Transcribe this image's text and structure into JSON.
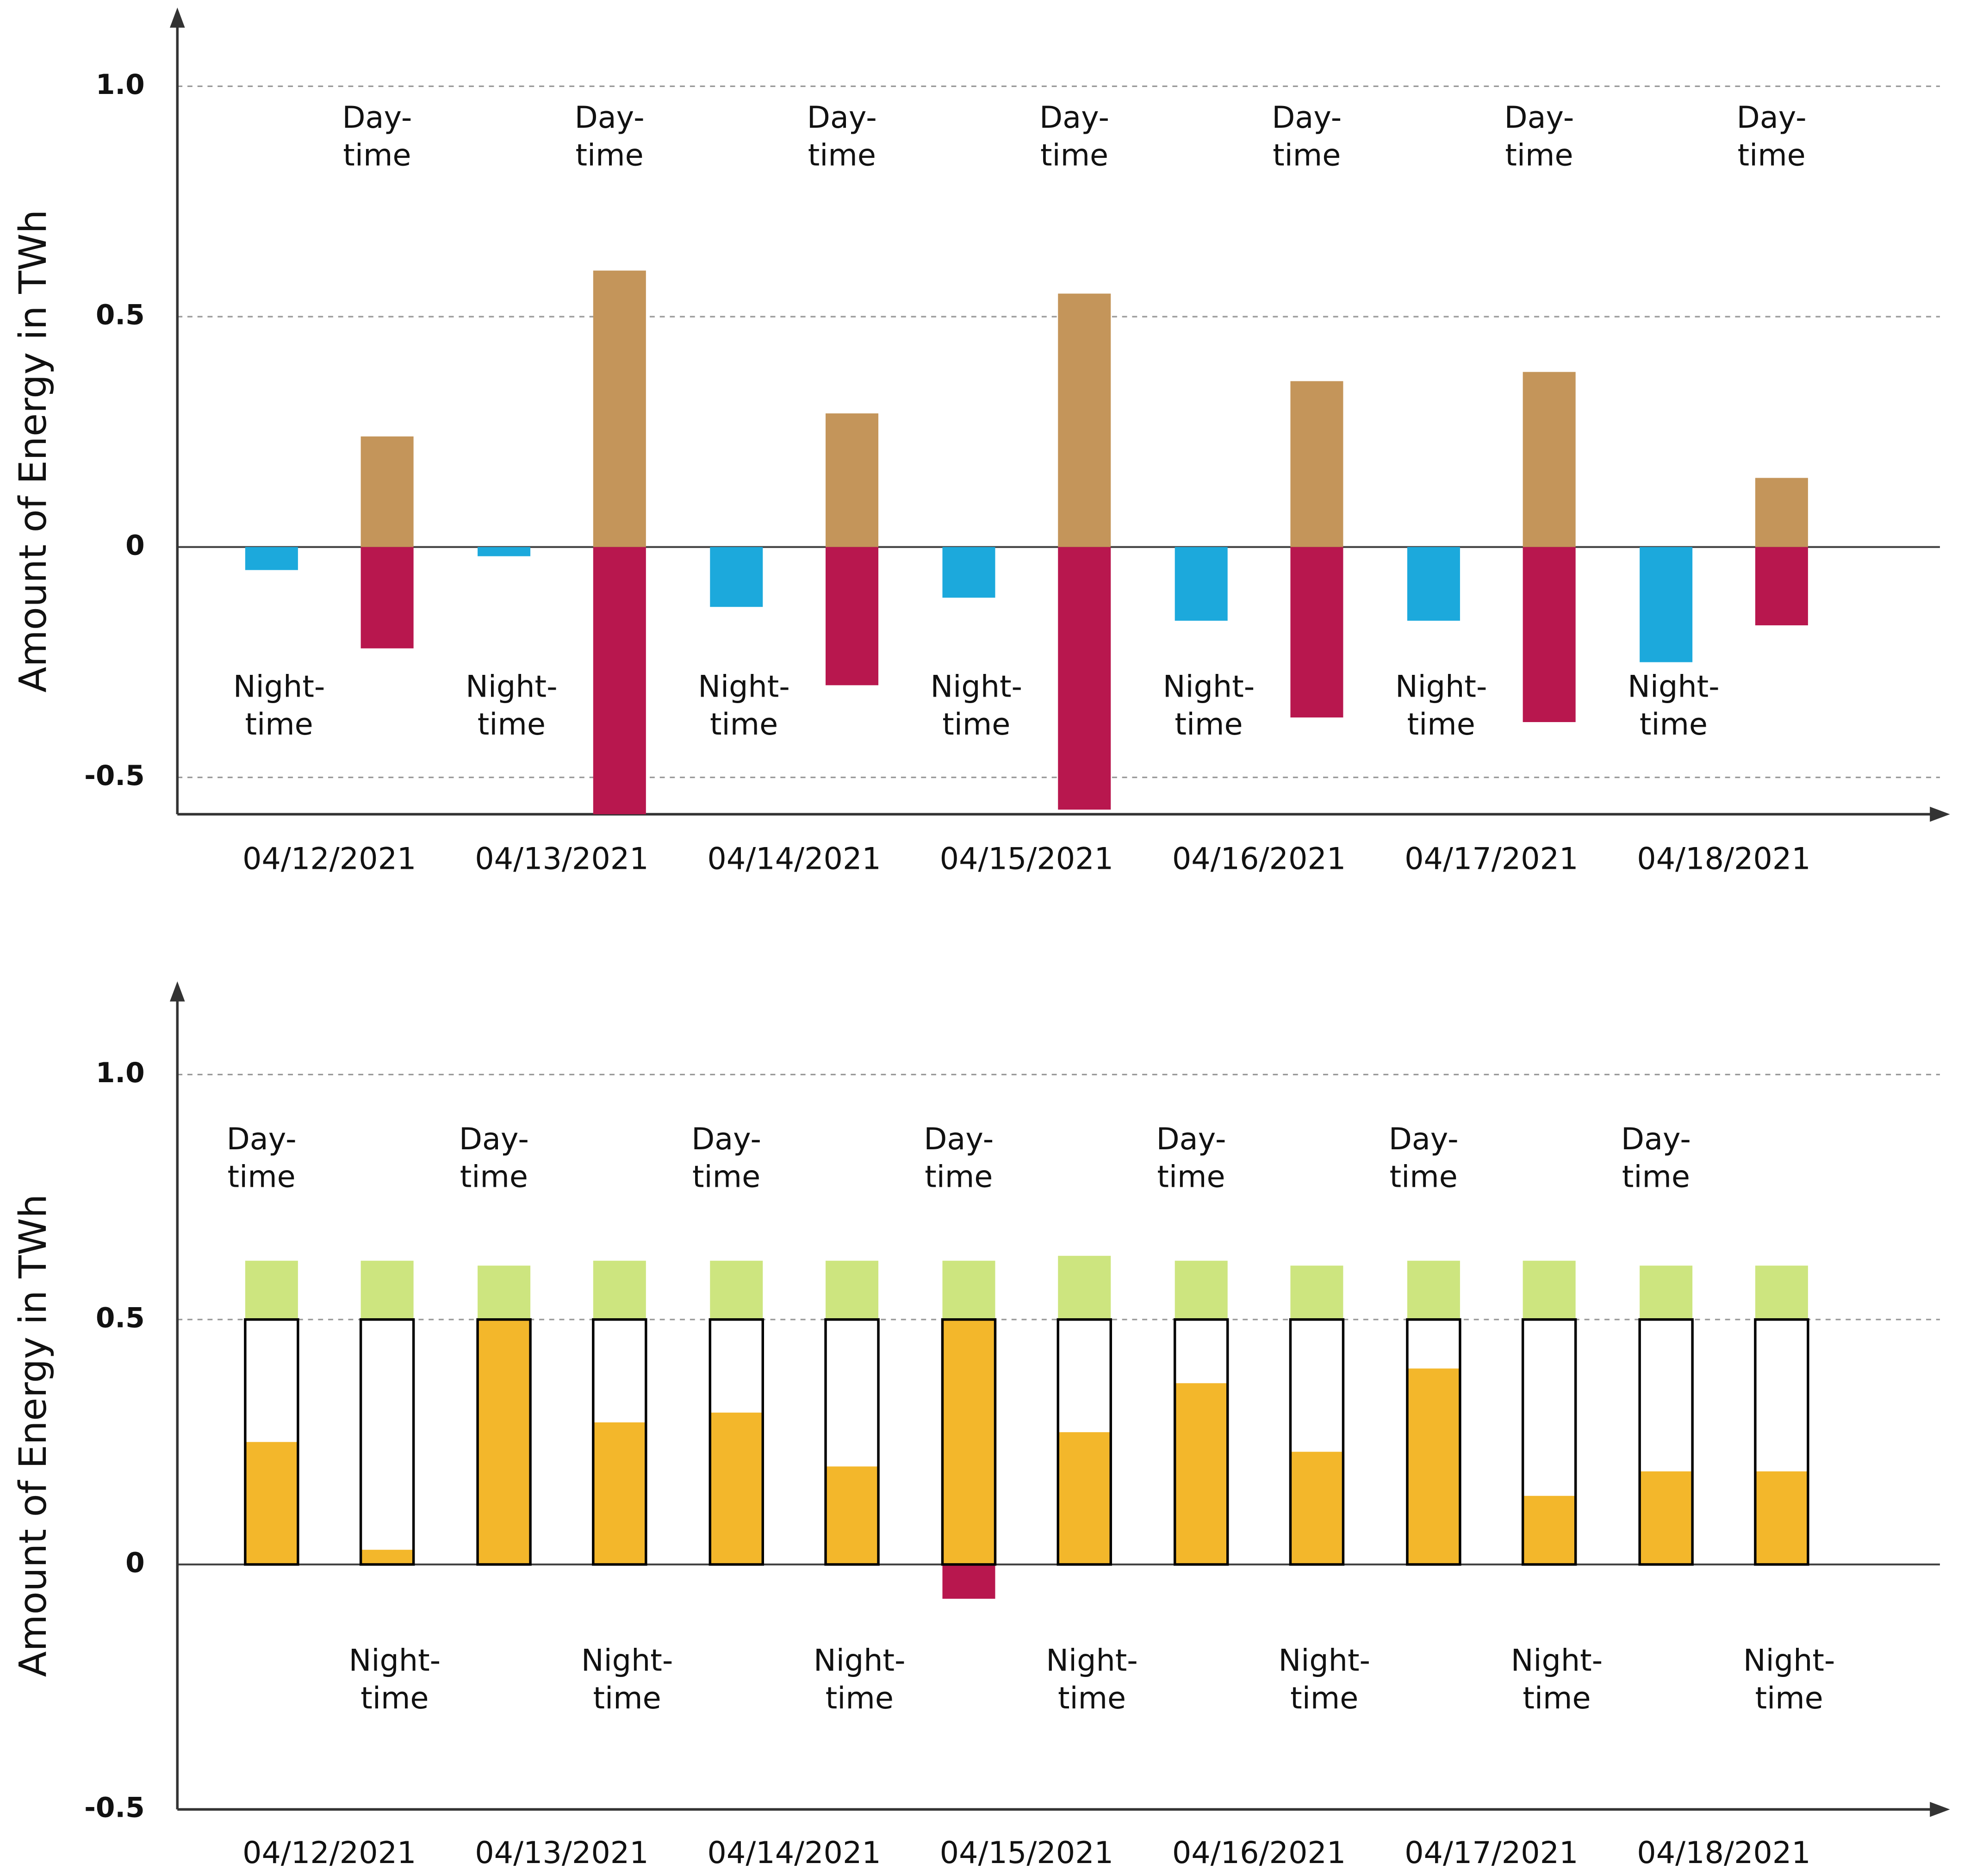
{
  "chart_data": [
    {
      "type": "bar",
      "ylabel": "Amount of Energy in TWh",
      "categories": [
        "04/12/2021",
        "04/13/2021",
        "04/14/2021",
        "04/15/2021",
        "04/16/2021",
        "04/17/2021",
        "04/18/2021"
      ],
      "ylim": [
        -0.58,
        1.16
      ],
      "yticks": [
        -0.5,
        0,
        0.5,
        {
          "value": 1,
          "label": "1.0"
        }
      ],
      "grid": true,
      "groups": [
        {
          "label": [
            "Night-",
            "time"
          ],
          "series": [
            {
              "color": "#1ca9dc",
              "values": [
                -0.05,
                -0.02,
                -0.13,
                -0.11,
                -0.16,
                -0.16,
                -0.25
              ]
            }
          ]
        },
        {
          "label": [
            "Day-",
            "time"
          ],
          "series": [
            {
              "color": "#c4955a",
              "values": [
                0.24,
                0.6,
                0.29,
                0.55,
                0.36,
                0.38,
                0.15
              ]
            },
            {
              "color": "#b8174e",
              "values": [
                -0.22,
                -0.58,
                -0.3,
                -0.57,
                -0.37,
                -0.38,
                -0.17
              ]
            }
          ]
        }
      ]
    },
    {
      "type": "bar",
      "ylabel": "Amount of Energy in TWh",
      "categories": [
        "04/12/2021",
        "04/13/2021",
        "04/14/2021",
        "04/15/2021",
        "04/16/2021",
        "04/17/2021",
        "04/18/2021"
      ],
      "ylim": [
        -0.5,
        1.18
      ],
      "yticks": [
        -0.5,
        0,
        0.5,
        {
          "value": 1,
          "label": "1.0"
        }
      ],
      "grid": true,
      "groups": [
        {
          "label": [
            "Day-",
            "time"
          ],
          "series": [
            {
              "color": "#000000",
              "outline": true,
              "values": [
                0.5,
                0.5,
                0.5,
                0.5,
                0.5,
                0.5,
                0.5
              ]
            },
            {
              "color": "#cde57f",
              "stacked": true,
              "values": [
                0.12,
                0.11,
                0.12,
                0.12,
                0.12,
                0.12,
                0.11
              ]
            },
            {
              "color": "#f3b72b",
              "values": [
                0.25,
                0.5,
                0.31,
                0.5,
                0.37,
                0.4,
                0.19
              ]
            },
            {
              "color": "#b8174e",
              "values": [
                0,
                0,
                0,
                -0.07,
                0,
                0,
                0
              ]
            }
          ]
        },
        {
          "label": [
            "Night-",
            "time"
          ],
          "series": [
            {
              "color": "#000000",
              "outline": true,
              "values": [
                0.5,
                0.5,
                0.5,
                0.5,
                0.5,
                0.5,
                0.5
              ]
            },
            {
              "color": "#cde57f",
              "stacked": true,
              "values": [
                0.12,
                0.12,
                0.12,
                0.13,
                0.11,
                0.12,
                0.11
              ]
            },
            {
              "color": "#f3b72b",
              "values": [
                0.03,
                0.29,
                0.2,
                0.27,
                0.23,
                0.14,
                0.19
              ]
            }
          ]
        }
      ]
    }
  ]
}
